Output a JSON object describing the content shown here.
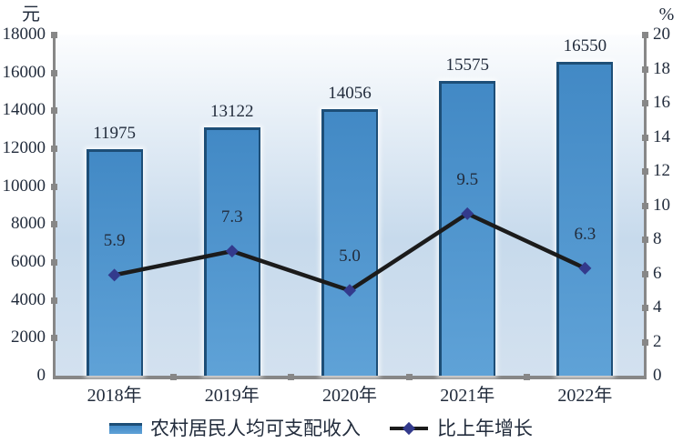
{
  "chart_data": {
    "type": "bar+line",
    "title": "",
    "categories": [
      "2018年",
      "2019年",
      "2020年",
      "2021年",
      "2022年"
    ],
    "series": [
      {
        "name": "农村居民人均可支配收入",
        "type": "bar",
        "axis": "left",
        "values": [
          11975,
          13122,
          14056,
          15575,
          16550
        ],
        "labels": [
          "11975",
          "13122",
          "14056",
          "15575",
          "16550"
        ],
        "bar_color": "#4289c5",
        "bar_color_light": "#5fa2d7",
        "bar_border_color": "#1d4e77"
      },
      {
        "name": "比上年增长",
        "type": "line",
        "axis": "right",
        "values": [
          5.9,
          7.3,
          5.0,
          9.5,
          6.3
        ],
        "labels": [
          "5.9",
          "7.3",
          "5.0",
          "9.5",
          "6.3"
        ],
        "line_color": "#1b1b1b",
        "marker": "diamond",
        "marker_color": "#333a8c"
      }
    ],
    "left_axis": {
      "unit": "元",
      "min": 0,
      "max": 18000,
      "step": 2000
    },
    "right_axis": {
      "unit": "%",
      "min": 0,
      "max": 20,
      "step": 2
    },
    "legend_position": "bottom",
    "grid": "off",
    "plot_background": [
      "#fcfdfe",
      "#c7daec",
      "#d3e1ef"
    ],
    "axis_color": "#878787",
    "text_color": "#222c3c"
  }
}
